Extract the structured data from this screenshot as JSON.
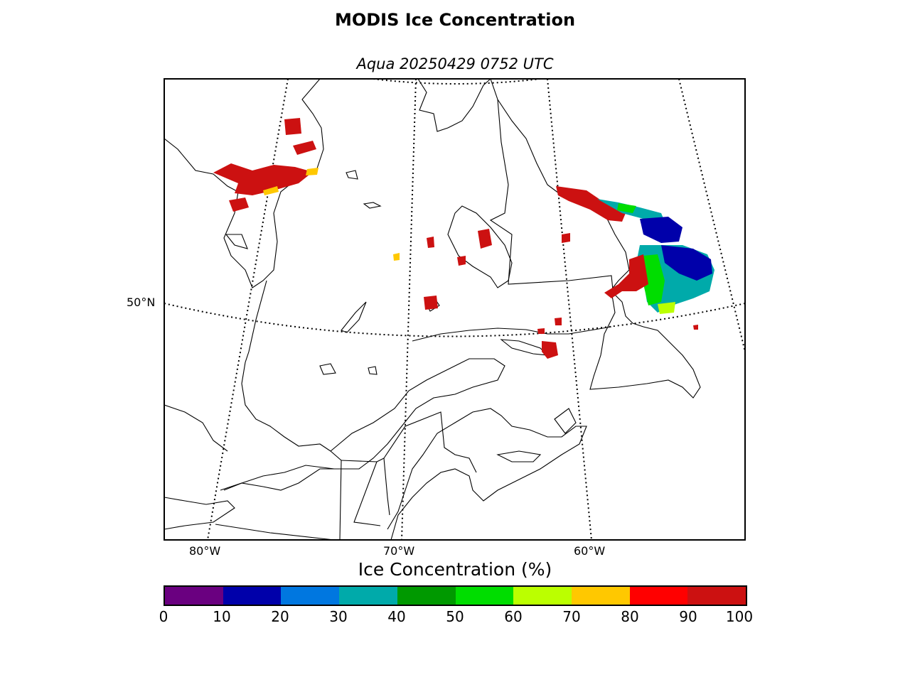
{
  "title": "MODIS Ice Concentration",
  "subtitle": "Aqua 20250429 0752 UTC",
  "map": {
    "lat_labels": [
      "50°N"
    ],
    "lon_labels": [
      "80°W",
      "70°W",
      "60°W"
    ]
  },
  "colorbar": {
    "title": "Ice Concentration (%)",
    "ticks": [
      "0",
      "10",
      "20",
      "30",
      "40",
      "50",
      "60",
      "70",
      "80",
      "90",
      "100"
    ],
    "colors": [
      "#6a0080",
      "#0000aa",
      "#0077e0",
      "#00aaaa",
      "#009900",
      "#00dd00",
      "#bbff00",
      "#ffc800",
      "#ff0000",
      "#cc1111"
    ]
  },
  "colors": {
    "ice_high": "#cc1111",
    "ice_red": "#ff0000",
    "ice_yellow": "#ffc800",
    "ice_green": "#00dd00",
    "ice_blue": "#0000aa",
    "ice_cyan": "#00aaaa"
  }
}
